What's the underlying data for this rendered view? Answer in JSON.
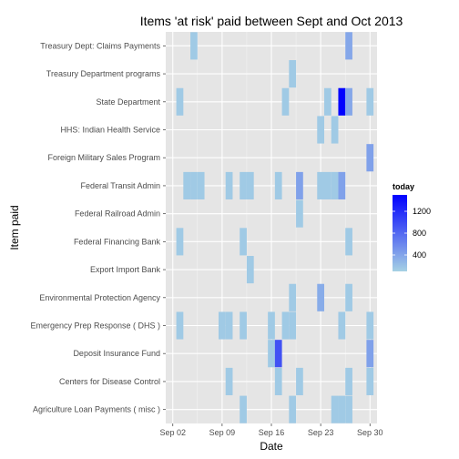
{
  "chart_data": {
    "type": "heatmap",
    "title": "Items 'at risk' paid between Sept and Oct 2013",
    "xlabel": "Date",
    "ylabel": "Item paid",
    "x_start": "2013-09-01",
    "x_end": "2013-10-01",
    "x_ticks": [
      {
        "date": "2013-09-02",
        "label": "Sep 02"
      },
      {
        "date": "2013-09-09",
        "label": "Sep 09"
      },
      {
        "date": "2013-09-16",
        "label": "Sep 16"
      },
      {
        "date": "2013-09-23",
        "label": "Sep 23"
      },
      {
        "date": "2013-09-30",
        "label": "Sep 30"
      }
    ],
    "categories": [
      "Treasury Dept: Claims Payments",
      "Treasury Department programs",
      "State Department",
      "HHS: Indian Health Service",
      "Foreign Military Sales Program",
      "Federal Transit Admin",
      "Federal Railroad Admin",
      "Federal Financing Bank",
      "Export Import Bank",
      "Environmental Protection Agency",
      "Emergency Prep Response ( DHS )",
      "Deposit Insurance Fund",
      "Centers for Disease Control",
      "Agriculture Loan Payments ( misc )"
    ],
    "legend": {
      "title": "today",
      "ticks": [
        400,
        800,
        1200
      ],
      "min": 100,
      "max": 1500,
      "low_color": "#a6d1e4",
      "high_color": "#0000ff",
      "position": "right"
    },
    "grid": true,
    "cells": [
      {
        "item": "Treasury Dept: Claims Payments",
        "date": "2013-09-05",
        "value": 150
      },
      {
        "item": "Treasury Dept: Claims Payments",
        "date": "2013-09-27",
        "value": 380
      },
      {
        "item": "Treasury Department programs",
        "date": "2013-09-19",
        "value": 150
      },
      {
        "item": "State Department",
        "date": "2013-09-03",
        "value": 150
      },
      {
        "item": "State Department",
        "date": "2013-09-18",
        "value": 150
      },
      {
        "item": "State Department",
        "date": "2013-09-24",
        "value": 150
      },
      {
        "item": "State Department",
        "date": "2013-09-26",
        "value": 1500
      },
      {
        "item": "State Department",
        "date": "2013-09-27",
        "value": 380
      },
      {
        "item": "State Department",
        "date": "2013-09-30",
        "value": 150
      },
      {
        "item": "HHS: Indian Health Service",
        "date": "2013-09-23",
        "value": 150
      },
      {
        "item": "HHS: Indian Health Service",
        "date": "2013-09-25",
        "value": 150
      },
      {
        "item": "Foreign Military Sales Program",
        "date": "2013-09-30",
        "value": 420
      },
      {
        "item": "Federal Transit Admin",
        "date": "2013-09-04",
        "value": 150
      },
      {
        "item": "Federal Transit Admin",
        "date": "2013-09-05",
        "value": 150
      },
      {
        "item": "Federal Transit Admin",
        "date": "2013-09-06",
        "value": 150
      },
      {
        "item": "Federal Transit Admin",
        "date": "2013-09-10",
        "value": 150
      },
      {
        "item": "Federal Transit Admin",
        "date": "2013-09-12",
        "value": 150
      },
      {
        "item": "Federal Transit Admin",
        "date": "2013-09-13",
        "value": 150
      },
      {
        "item": "Federal Transit Admin",
        "date": "2013-09-17",
        "value": 150
      },
      {
        "item": "Federal Transit Admin",
        "date": "2013-09-20",
        "value": 420
      },
      {
        "item": "Federal Transit Admin",
        "date": "2013-09-23",
        "value": 150
      },
      {
        "item": "Federal Transit Admin",
        "date": "2013-09-24",
        "value": 150
      },
      {
        "item": "Federal Transit Admin",
        "date": "2013-09-25",
        "value": 150
      },
      {
        "item": "Federal Transit Admin",
        "date": "2013-09-26",
        "value": 420
      },
      {
        "item": "Federal Railroad Admin",
        "date": "2013-09-20",
        "value": 150
      },
      {
        "item": "Federal Financing Bank",
        "date": "2013-09-03",
        "value": 150
      },
      {
        "item": "Federal Financing Bank",
        "date": "2013-09-12",
        "value": 150
      },
      {
        "item": "Federal Financing Bank",
        "date": "2013-09-27",
        "value": 150
      },
      {
        "item": "Export Import Bank",
        "date": "2013-09-13",
        "value": 150
      },
      {
        "item": "Environmental Protection Agency",
        "date": "2013-09-19",
        "value": 150
      },
      {
        "item": "Environmental Protection Agency",
        "date": "2013-09-23",
        "value": 350
      },
      {
        "item": "Environmental Protection Agency",
        "date": "2013-09-27",
        "value": 150
      },
      {
        "item": "Emergency Prep Response ( DHS )",
        "date": "2013-09-03",
        "value": 150
      },
      {
        "item": "Emergency Prep Response ( DHS )",
        "date": "2013-09-09",
        "value": 150
      },
      {
        "item": "Emergency Prep Response ( DHS )",
        "date": "2013-09-10",
        "value": 150
      },
      {
        "item": "Emergency Prep Response ( DHS )",
        "date": "2013-09-12",
        "value": 150
      },
      {
        "item": "Emergency Prep Response ( DHS )",
        "date": "2013-09-16",
        "value": 150
      },
      {
        "item": "Emergency Prep Response ( DHS )",
        "date": "2013-09-18",
        "value": 150
      },
      {
        "item": "Emergency Prep Response ( DHS )",
        "date": "2013-09-19",
        "value": 150
      },
      {
        "item": "Emergency Prep Response ( DHS )",
        "date": "2013-09-26",
        "value": 150
      },
      {
        "item": "Emergency Prep Response ( DHS )",
        "date": "2013-09-30",
        "value": 150
      },
      {
        "item": "Deposit Insurance Fund",
        "date": "2013-09-16",
        "value": 150
      },
      {
        "item": "Deposit Insurance Fund",
        "date": "2013-09-17",
        "value": 950
      },
      {
        "item": "Deposit Insurance Fund",
        "date": "2013-09-30",
        "value": 420
      },
      {
        "item": "Centers for Disease Control",
        "date": "2013-09-10",
        "value": 150
      },
      {
        "item": "Centers for Disease Control",
        "date": "2013-09-17",
        "value": 150
      },
      {
        "item": "Centers for Disease Control",
        "date": "2013-09-20",
        "value": 150
      },
      {
        "item": "Centers for Disease Control",
        "date": "2013-09-27",
        "value": 150
      },
      {
        "item": "Centers for Disease Control",
        "date": "2013-09-30",
        "value": 150
      },
      {
        "item": "Agriculture Loan Payments ( misc )",
        "date": "2013-09-12",
        "value": 150
      },
      {
        "item": "Agriculture Loan Payments ( misc )",
        "date": "2013-09-19",
        "value": 150
      },
      {
        "item": "Agriculture Loan Payments ( misc )",
        "date": "2013-09-25",
        "value": 150
      },
      {
        "item": "Agriculture Loan Payments ( misc )",
        "date": "2013-09-26",
        "value": 150
      },
      {
        "item": "Agriculture Loan Payments ( misc )",
        "date": "2013-09-27",
        "value": 150
      }
    ]
  }
}
